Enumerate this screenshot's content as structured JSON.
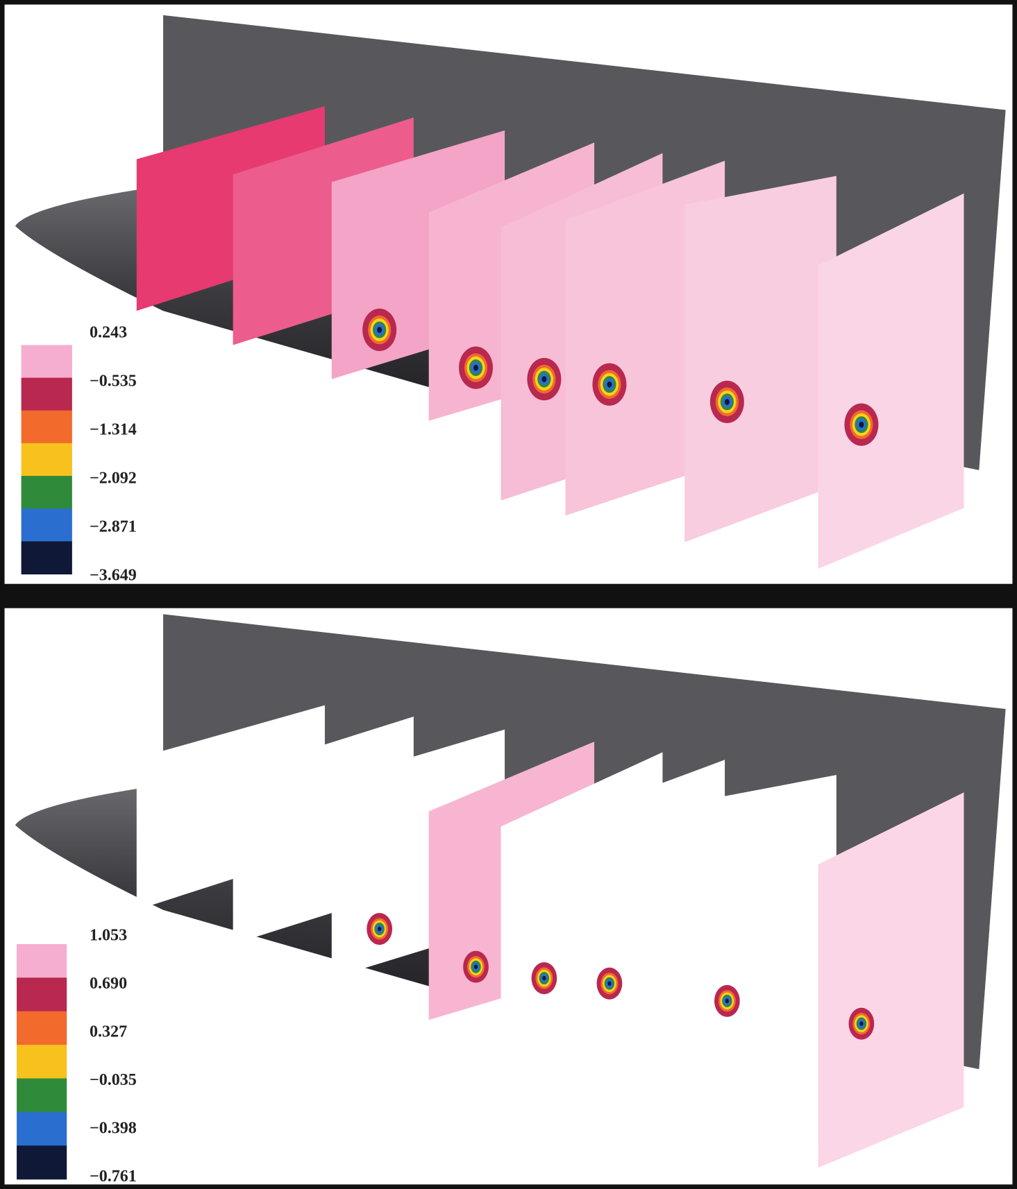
{
  "panels": [
    {
      "colorbar": {
        "labels": [
          "0.243",
          "−0.535",
          "−1.314",
          "−2.092",
          "−2.871",
          "−3.649"
        ]
      }
    },
    {
      "colorbar": {
        "labels": [
          "1.053",
          "0.690",
          "0.327",
          "−0.035",
          "−0.398",
          "−0.761"
        ]
      }
    }
  ]
}
